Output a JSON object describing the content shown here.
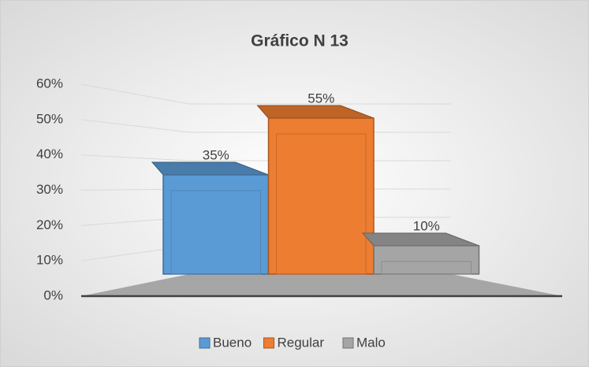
{
  "chart_data": {
    "type": "bar3d",
    "title": "Gráfico N 13",
    "categories": [
      null
    ],
    "series": [
      {
        "name": "Bueno",
        "color": "#5b9bd5",
        "values": [
          35
        ],
        "value_labels": [
          "35%"
        ]
      },
      {
        "name": "Regular",
        "color": "#ed7d31",
        "values": [
          55
        ],
        "value_labels": [
          "55%"
        ]
      },
      {
        "name": "Malo",
        "color": "#a5a5a5",
        "values": [
          10
        ],
        "value_labels": [
          "10%"
        ]
      }
    ],
    "ylim": [
      0,
      60
    ],
    "yticks": [
      {
        "value": 0,
        "label": "0%"
      },
      {
        "value": 10,
        "label": "10%"
      },
      {
        "value": 20,
        "label": "20%"
      },
      {
        "value": 30,
        "label": "30%"
      },
      {
        "value": 40,
        "label": "40%"
      },
      {
        "value": 50,
        "label": "50%"
      },
      {
        "value": 60,
        "label": "60%"
      }
    ],
    "grid": true,
    "legend": "bottom"
  }
}
